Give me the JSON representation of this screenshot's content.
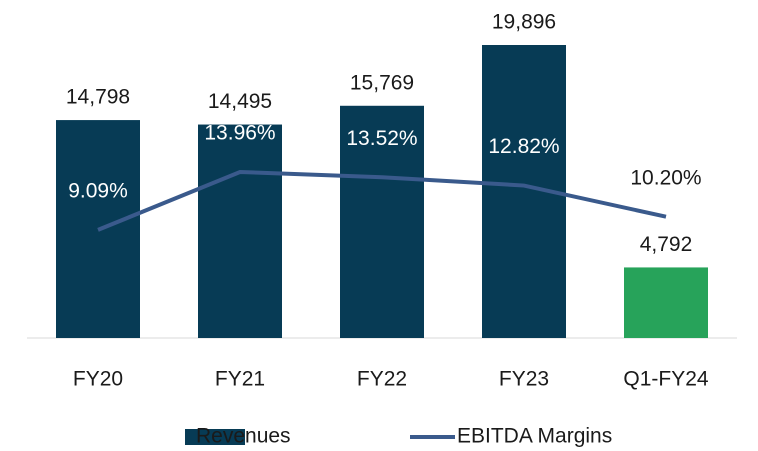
{
  "chart_data": {
    "type": "bar_line",
    "categories": [
      "FY20",
      "FY21",
      "FY22",
      "FY23",
      "Q1-FY24"
    ],
    "series": [
      {
        "name": "Revenues",
        "type": "bar",
        "color": "#073b55",
        "colors": [
          "#073b55",
          "#073b55",
          "#073b55",
          "#073b55",
          "#27a35a"
        ],
        "values": [
          14798,
          14495,
          15769,
          19896,
          4792
        ],
        "value_labels": [
          "14,798",
          "14,495",
          "15,769",
          "19,896",
          "4,792"
        ]
      },
      {
        "name": "EBITDA Margins",
        "type": "line",
        "axis": "y2",
        "color": "#3a5a8c",
        "values": [
          9.09,
          13.96,
          13.52,
          12.82,
          10.2
        ],
        "value_labels": [
          "9.09%",
          "13.96%",
          "13.52%",
          "12.82%",
          "10.20%"
        ]
      }
    ],
    "legend": "bottom"
  }
}
